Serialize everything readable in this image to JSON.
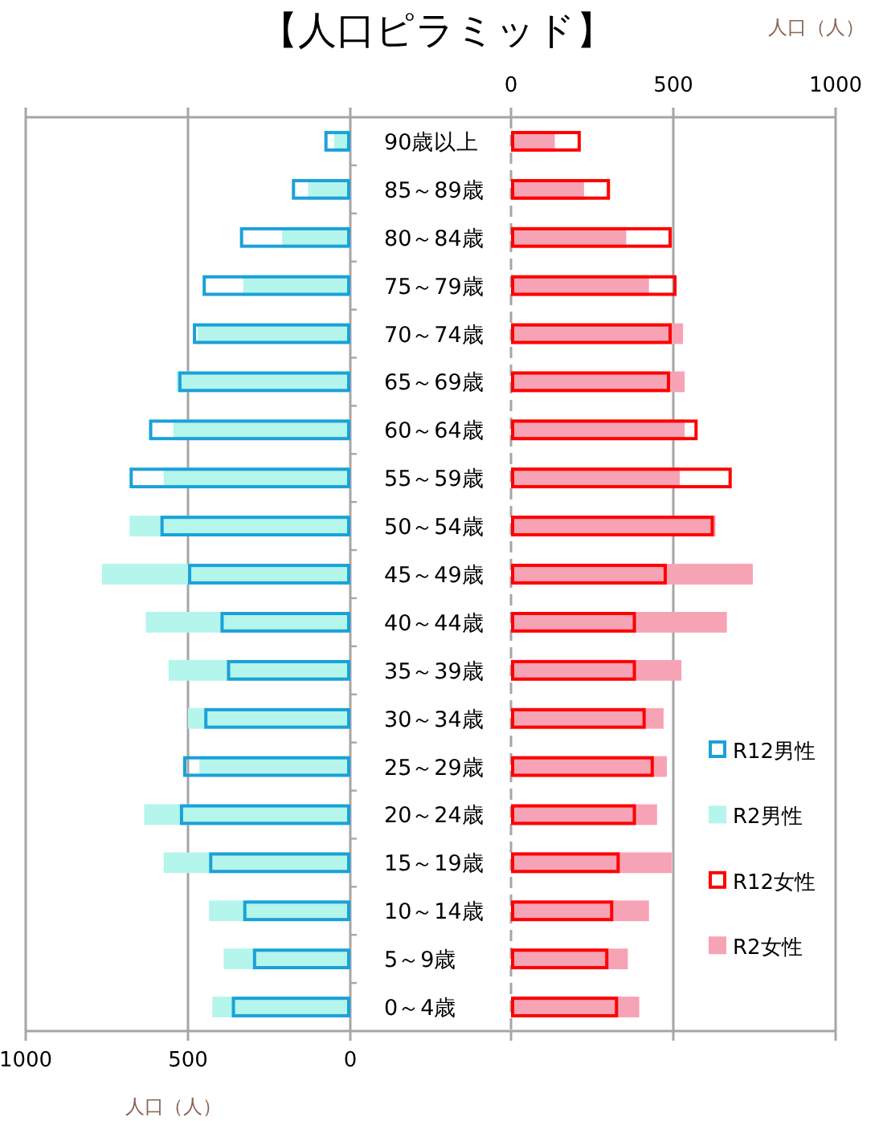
{
  "chart_data": [
    {
      "type": "bar",
      "orientation": "horizontal",
      "title": "【人口ピラミッド】",
      "xlabel": "人口（人）",
      "categories": [
        "90歳以上",
        "85～89歳",
        "80～84歳",
        "75～79歳",
        "70～74歳",
        "65～69歳",
        "60～64歳",
        "55～59歳",
        "50～54歳",
        "45～49歳",
        "40～44歳",
        "35～39歳",
        "30～34歳",
        "25～29歳",
        "20～24歳",
        "15～19歳",
        "10～14歳",
        "5～9歳",
        "0～4歳"
      ],
      "series": [
        {
          "name": "R12男性",
          "color": "#1ba1d8",
          "values": [
            80,
            180,
            340,
            455,
            485,
            530,
            620,
            680,
            585,
            500,
            400,
            380,
            450,
            515,
            525,
            435,
            330,
            300,
            365
          ]
        },
        {
          "name": "R2男性",
          "color": "#b4f5ec",
          "values": [
            50,
            130,
            210,
            330,
            470,
            535,
            545,
            575,
            680,
            765,
            630,
            560,
            500,
            465,
            635,
            575,
            435,
            390,
            425
          ]
        }
      ],
      "xlim": [
        1000,
        0
      ],
      "xticks": [
        1000,
        500,
        0
      ],
      "grid": "x",
      "legend": "right"
    },
    {
      "type": "bar",
      "orientation": "horizontal",
      "xlabel": "人口（人）",
      "categories": [
        null,
        null,
        null,
        null,
        null,
        null,
        null,
        null,
        null,
        null,
        null,
        null,
        null,
        null,
        null,
        null,
        null,
        null,
        null
      ],
      "series": [
        {
          "name": "R12女性",
          "color": "#ff0000",
          "values": [
            215,
            305,
            495,
            510,
            495,
            490,
            575,
            680,
            625,
            480,
            385,
            385,
            415,
            440,
            385,
            335,
            315,
            300,
            330
          ]
        },
        {
          "name": "R2女性",
          "color": "#f7a3b6",
          "values": [
            135,
            225,
            355,
            425,
            530,
            535,
            535,
            520,
            630,
            745,
            665,
            525,
            470,
            480,
            450,
            495,
            425,
            360,
            395
          ]
        }
      ],
      "xlim": [
        0,
        1000
      ],
      "xticks": [
        0,
        500,
        1000
      ],
      "grid": "x",
      "legend": "right",
      "tick_labels": "x"
    }
  ]
}
